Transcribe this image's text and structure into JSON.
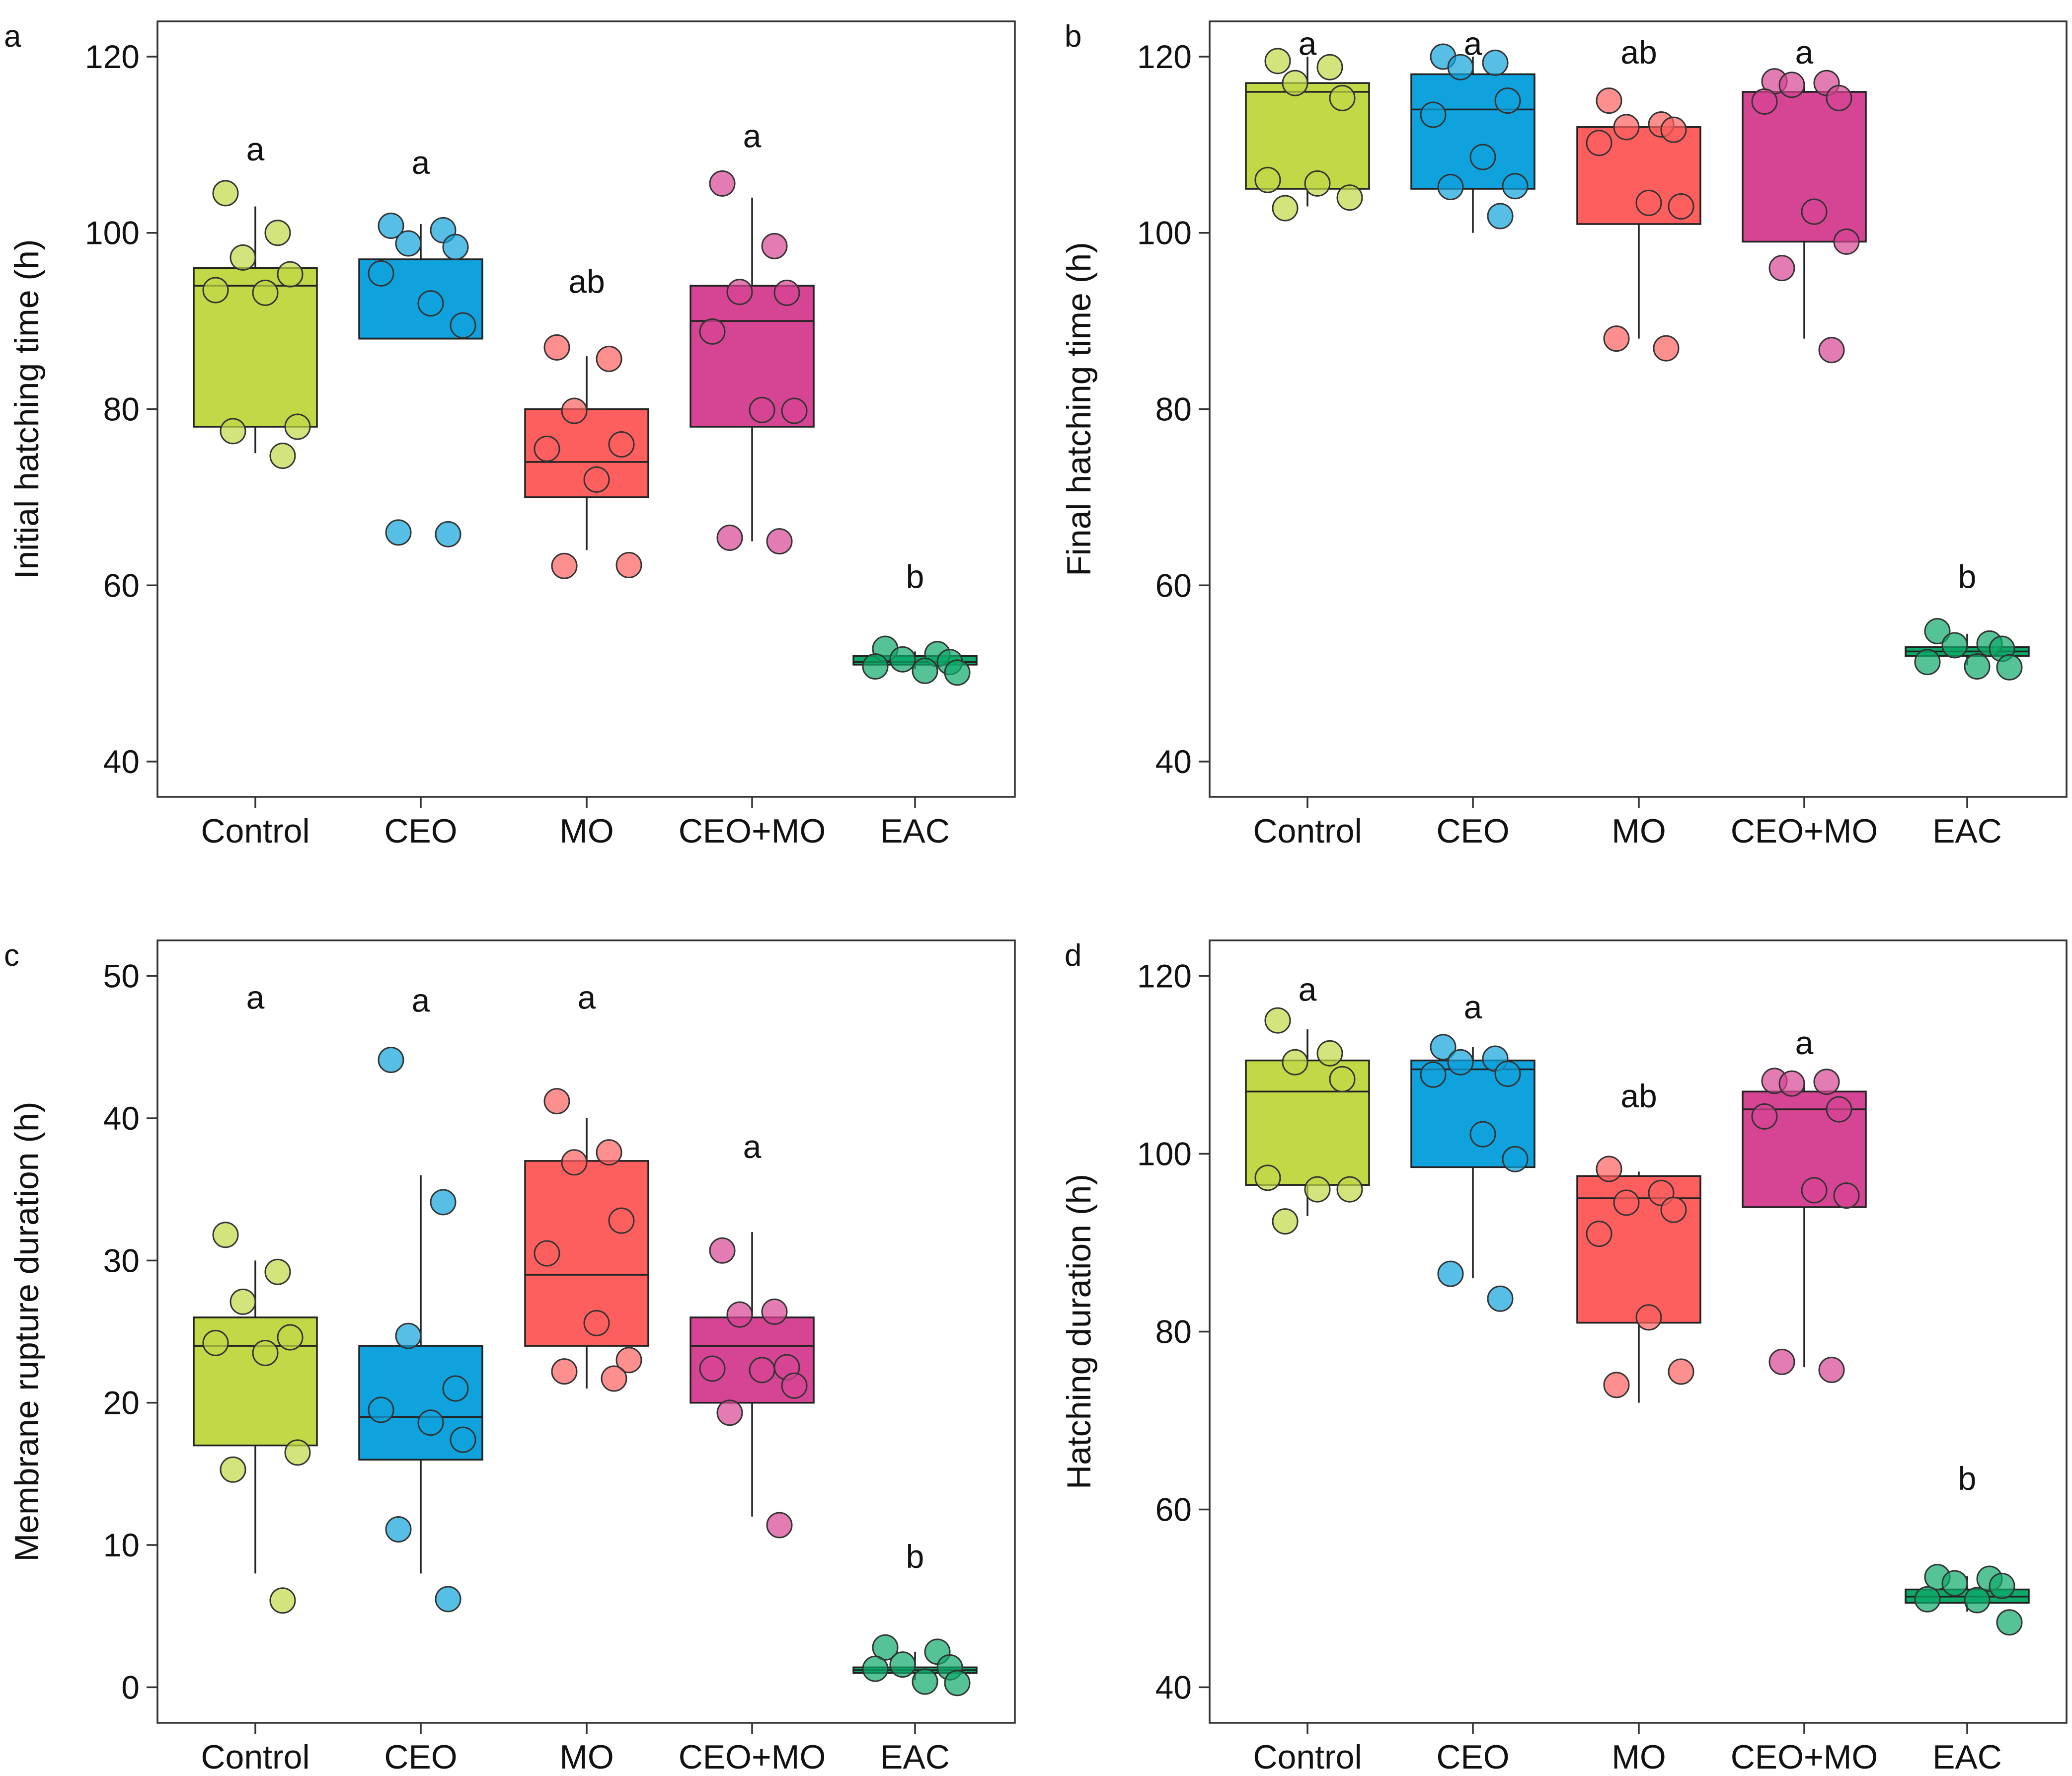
{
  "chart_data": [
    {
      "panel": "a",
      "type": "boxplot",
      "ylabel": "Initial hatching time (h)",
      "xlabel": "",
      "ylim": [
        36,
        124
      ],
      "yticks": [
        40,
        60,
        80,
        100,
        120
      ],
      "categories": [
        "Control",
        "CEO",
        "MO",
        "CEO+MO",
        "EAC"
      ],
      "colors": [
        "#c2d846",
        "#10a2dc",
        "#fc5f5e",
        "#d64593",
        "#0daa6a"
      ],
      "boxes": [
        {
          "q1": 78,
          "median": 94,
          "q3": 96,
          "whisker_low": 75,
          "whisker_high": 103
        },
        {
          "q1": 88,
          "median": 88,
          "q3": 97,
          "whisker_low": 88,
          "whisker_high": 101
        },
        {
          "q1": 70,
          "median": 74,
          "q3": 80,
          "whisker_low": 64,
          "whisker_high": 86
        },
        {
          "q1": 78,
          "median": 90,
          "q3": 94,
          "whisker_low": 65,
          "whisker_high": 104
        },
        {
          "q1": 51,
          "median": 51.3,
          "q3": 52,
          "whisker_low": 50.5,
          "whisker_high": 52.5
        }
      ],
      "points": [
        [
          104.5,
          100,
          97.2,
          95.3,
          93.5,
          93.2,
          78,
          77.5,
          74.7
        ],
        [
          100.8,
          100.3,
          98.8,
          98.4,
          95.4,
          92,
          89.5,
          66,
          65.8
        ],
        [
          87,
          85.7,
          79.8,
          76,
          75.5,
          72,
          62.3,
          62.2
        ],
        [
          105.6,
          98.5,
          93.3,
          93.2,
          88.8,
          79.9,
          79.8,
          65.4,
          65
        ],
        [
          52.8,
          52.2,
          51.6,
          51.3,
          50.8,
          50.3,
          50.1
        ]
      ],
      "letters": [
        "a",
        "a",
        "ab",
        "a",
        "b"
      ],
      "letter_y": [
        109.5,
        108,
        94.5,
        111,
        61
      ]
    },
    {
      "panel": "b",
      "type": "boxplot",
      "ylabel": "Final hatching time (h)",
      "xlabel": "",
      "ylim": [
        36,
        124
      ],
      "yticks": [
        40,
        60,
        80,
        100,
        120
      ],
      "categories": [
        "Control",
        "CEO",
        "MO",
        "CEO+MO",
        "EAC"
      ],
      "colors": [
        "#c2d846",
        "#10a2dc",
        "#fc5f5e",
        "#d64593",
        "#0daa6a"
      ],
      "boxes": [
        {
          "q1": 105,
          "median": 116,
          "q3": 117,
          "whisker_low": 103,
          "whisker_high": 120
        },
        {
          "q1": 105,
          "median": 114,
          "q3": 118,
          "whisker_low": 100,
          "whisker_high": 120
        },
        {
          "q1": 101,
          "median": 112,
          "q3": 112,
          "whisker_low": 88,
          "whisker_high": 112
        },
        {
          "q1": 99,
          "median": 116,
          "q3": 116,
          "whisker_low": 88,
          "whisker_high": 117
        },
        {
          "q1": 52,
          "median": 52.5,
          "q3": 53,
          "whisker_low": 51,
          "whisker_high": 54.5
        }
      ],
      "points": [
        [
          119.5,
          118.8,
          117,
          115.3,
          106,
          105.6,
          104,
          102.8
        ],
        [
          120,
          119.3,
          118.8,
          115,
          113.4,
          108.6,
          105.3,
          105.2,
          101.9
        ],
        [
          115,
          112.3,
          112,
          111.7,
          110.2,
          103.4,
          103,
          88,
          86.9
        ],
        [
          117.2,
          117,
          116.8,
          115.3,
          114.9,
          102.4,
          99,
          96,
          86.7
        ],
        [
          54.8,
          53.4,
          53.2,
          52.8,
          51.3,
          50.8,
          50.7
        ]
      ],
      "letters": [
        "a",
        "a",
        "ab",
        "a",
        "b"
      ],
      "letter_y": [
        121.5,
        121.5,
        120.5,
        120.5,
        61
      ]
    },
    {
      "panel": "c",
      "type": "boxplot",
      "ylabel": "Membrane rupture duration (h)",
      "xlabel": "",
      "ylim": [
        -2.5,
        52.5
      ],
      "yticks": [
        0,
        10,
        20,
        30,
        40,
        50
      ],
      "categories": [
        "Control",
        "CEO",
        "MO",
        "CEO+MO",
        "EAC"
      ],
      "colors": [
        "#c2d846",
        "#10a2dc",
        "#fc5f5e",
        "#d64593",
        "#0daa6a"
      ],
      "boxes": [
        {
          "q1": 17,
          "median": 24,
          "q3": 26,
          "whisker_low": 8,
          "whisker_high": 30
        },
        {
          "q1": 16,
          "median": 19,
          "q3": 24,
          "whisker_low": 8,
          "whisker_high": 36
        },
        {
          "q1": 24,
          "median": 29,
          "q3": 37,
          "whisker_low": 21,
          "whisker_high": 40
        },
        {
          "q1": 20,
          "median": 24,
          "q3": 26,
          "whisker_low": 12,
          "whisker_high": 32
        },
        {
          "q1": 1,
          "median": 1.2,
          "q3": 1.4,
          "whisker_low": 0.5,
          "whisker_high": 2.5
        }
      ],
      "points": [
        [
          31.8,
          29.2,
          27.1,
          24.6,
          24.2,
          23.5,
          16.5,
          15.3,
          6.1
        ],
        [
          44.1,
          34.1,
          24.7,
          21,
          19.5,
          18.6,
          17.4,
          11.1,
          6.2
        ],
        [
          41.2,
          37.6,
          36.9,
          32.8,
          30.5,
          25.6,
          23,
          22.2,
          21.7
        ],
        [
          30.7,
          26.4,
          26.2,
          22.5,
          22.4,
          22.3,
          21.2,
          19.3,
          11.4
        ],
        [
          2.8,
          2.5,
          1.6,
          1.4,
          1.3,
          0.4,
          0.3
        ]
      ],
      "letters": [
        "a",
        "a",
        "a",
        "a",
        "b"
      ],
      "letter_y": [
        48.5,
        48.3,
        48.5,
        38,
        9.2
      ]
    },
    {
      "panel": "d",
      "type": "boxplot",
      "ylabel": "Hatching duration (h)",
      "xlabel": "",
      "ylim": [
        36,
        124
      ],
      "yticks": [
        40,
        60,
        80,
        100,
        120
      ],
      "categories": [
        "Control",
        "CEO",
        "MO",
        "CEO+MO",
        "EAC"
      ],
      "colors": [
        "#c2d846",
        "#10a2dc",
        "#fc5f5e",
        "#d64593",
        "#0daa6a"
      ],
      "boxes": [
        {
          "q1": 96.5,
          "median": 107,
          "q3": 110.5,
          "whisker_low": 93,
          "whisker_high": 114
        },
        {
          "q1": 98.5,
          "median": 109.5,
          "q3": 110.5,
          "whisker_low": 86,
          "whisker_high": 112
        },
        {
          "q1": 81,
          "median": 95,
          "q3": 97.5,
          "whisker_low": 72,
          "whisker_high": 98
        },
        {
          "q1": 94,
          "median": 105,
          "q3": 107,
          "whisker_low": 76,
          "whisker_high": 108
        },
        {
          "q1": 49.5,
          "median": 50.2,
          "q3": 51,
          "whisker_low": 48.5,
          "whisker_high": 52.5
        }
      ],
      "points": [
        [
          115,
          111.3,
          110.3,
          108.4,
          97.3,
          96,
          96,
          92.4
        ],
        [
          112,
          110.7,
          110.3,
          109,
          108.9,
          102.2,
          99.4,
          86.5,
          83.7
        ],
        [
          98.3,
          95.6,
          94.5,
          93.7,
          91,
          81.6,
          75.5,
          74
        ],
        [
          108.2,
          108.1,
          107.9,
          105,
          104.2,
          95.9,
          95.3,
          76.6,
          75.7
        ],
        [
          52.4,
          52.2,
          51.7,
          51.4,
          49.9,
          49.8,
          47.3
        ]
      ],
      "letters": [
        "a",
        "a",
        "ab",
        "a",
        "b"
      ],
      "letter_y": [
        118.5,
        116.5,
        106.5,
        112.5,
        63.5
      ]
    }
  ]
}
